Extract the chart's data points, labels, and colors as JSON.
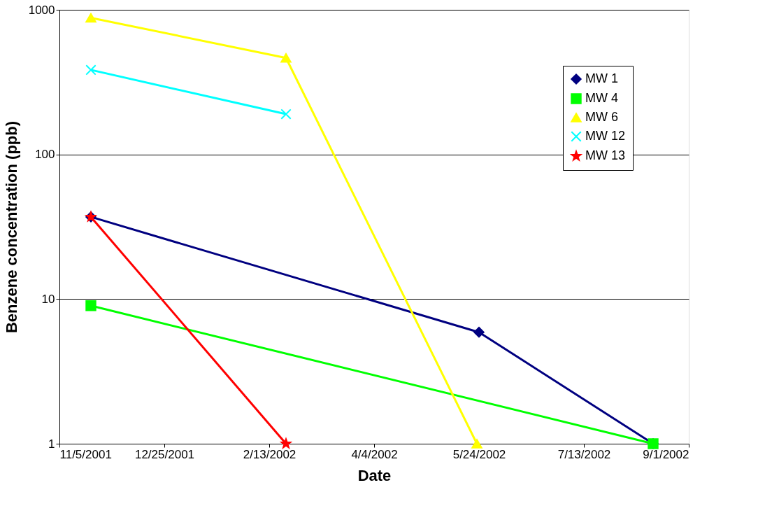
{
  "chart_data": {
    "type": "line",
    "xlabel": "Date",
    "ylabel": "Benzene concentration (ppb)",
    "log": "y",
    "grid": "y",
    "legend": "top right",
    "line_style": "solid",
    "xlim": [
      "2001-11-05",
      "2002-09-01"
    ],
    "xticks": [
      {
        "value": "2001-11-05",
        "label": "11/5/2001"
      },
      {
        "value": "2001-12-25",
        "label": "12/25/2001"
      },
      {
        "value": "2002-02-13",
        "label": "2/13/2002"
      },
      {
        "value": "2002-04-04",
        "label": "4/4/2002"
      },
      {
        "value": "2002-05-24",
        "label": "5/24/2002"
      },
      {
        "value": "2002-07-13",
        "label": "7/13/2002"
      },
      {
        "value": "2002-09-01",
        "label": "9/1/2002"
      }
    ],
    "ylim": [
      1,
      1000
    ],
    "yticks": [
      1,
      10,
      100,
      1000
    ],
    "series": [
      {
        "name": "MW 1",
        "color": "#000080",
        "marker": "diamond",
        "x": [
          "2001-11-20",
          "2002-05-24",
          "2002-08-15"
        ],
        "values": [
          37,
          5.9,
          1
        ]
      },
      {
        "name": "MW 4",
        "color": "#00ff00",
        "marker": "square",
        "x": [
          "2001-11-20",
          "2002-08-15"
        ],
        "values": [
          9,
          1
        ]
      },
      {
        "name": "MW 6",
        "color": "#ffff00",
        "marker": "triangle",
        "x": [
          "2001-11-20",
          "2002-02-21",
          "2002-05-23"
        ],
        "values": [
          880,
          465,
          1
        ]
      },
      {
        "name": "MW 12",
        "color": "#00ffff",
        "marker": "cross",
        "x": [
          "2001-11-20",
          "2002-02-21"
        ],
        "values": [
          384,
          190
        ]
      },
      {
        "name": "MW 13",
        "color": "#ff0000",
        "marker": "star",
        "x": [
          "2001-11-20",
          "2002-02-21"
        ],
        "values": [
          37,
          1
        ]
      }
    ]
  }
}
